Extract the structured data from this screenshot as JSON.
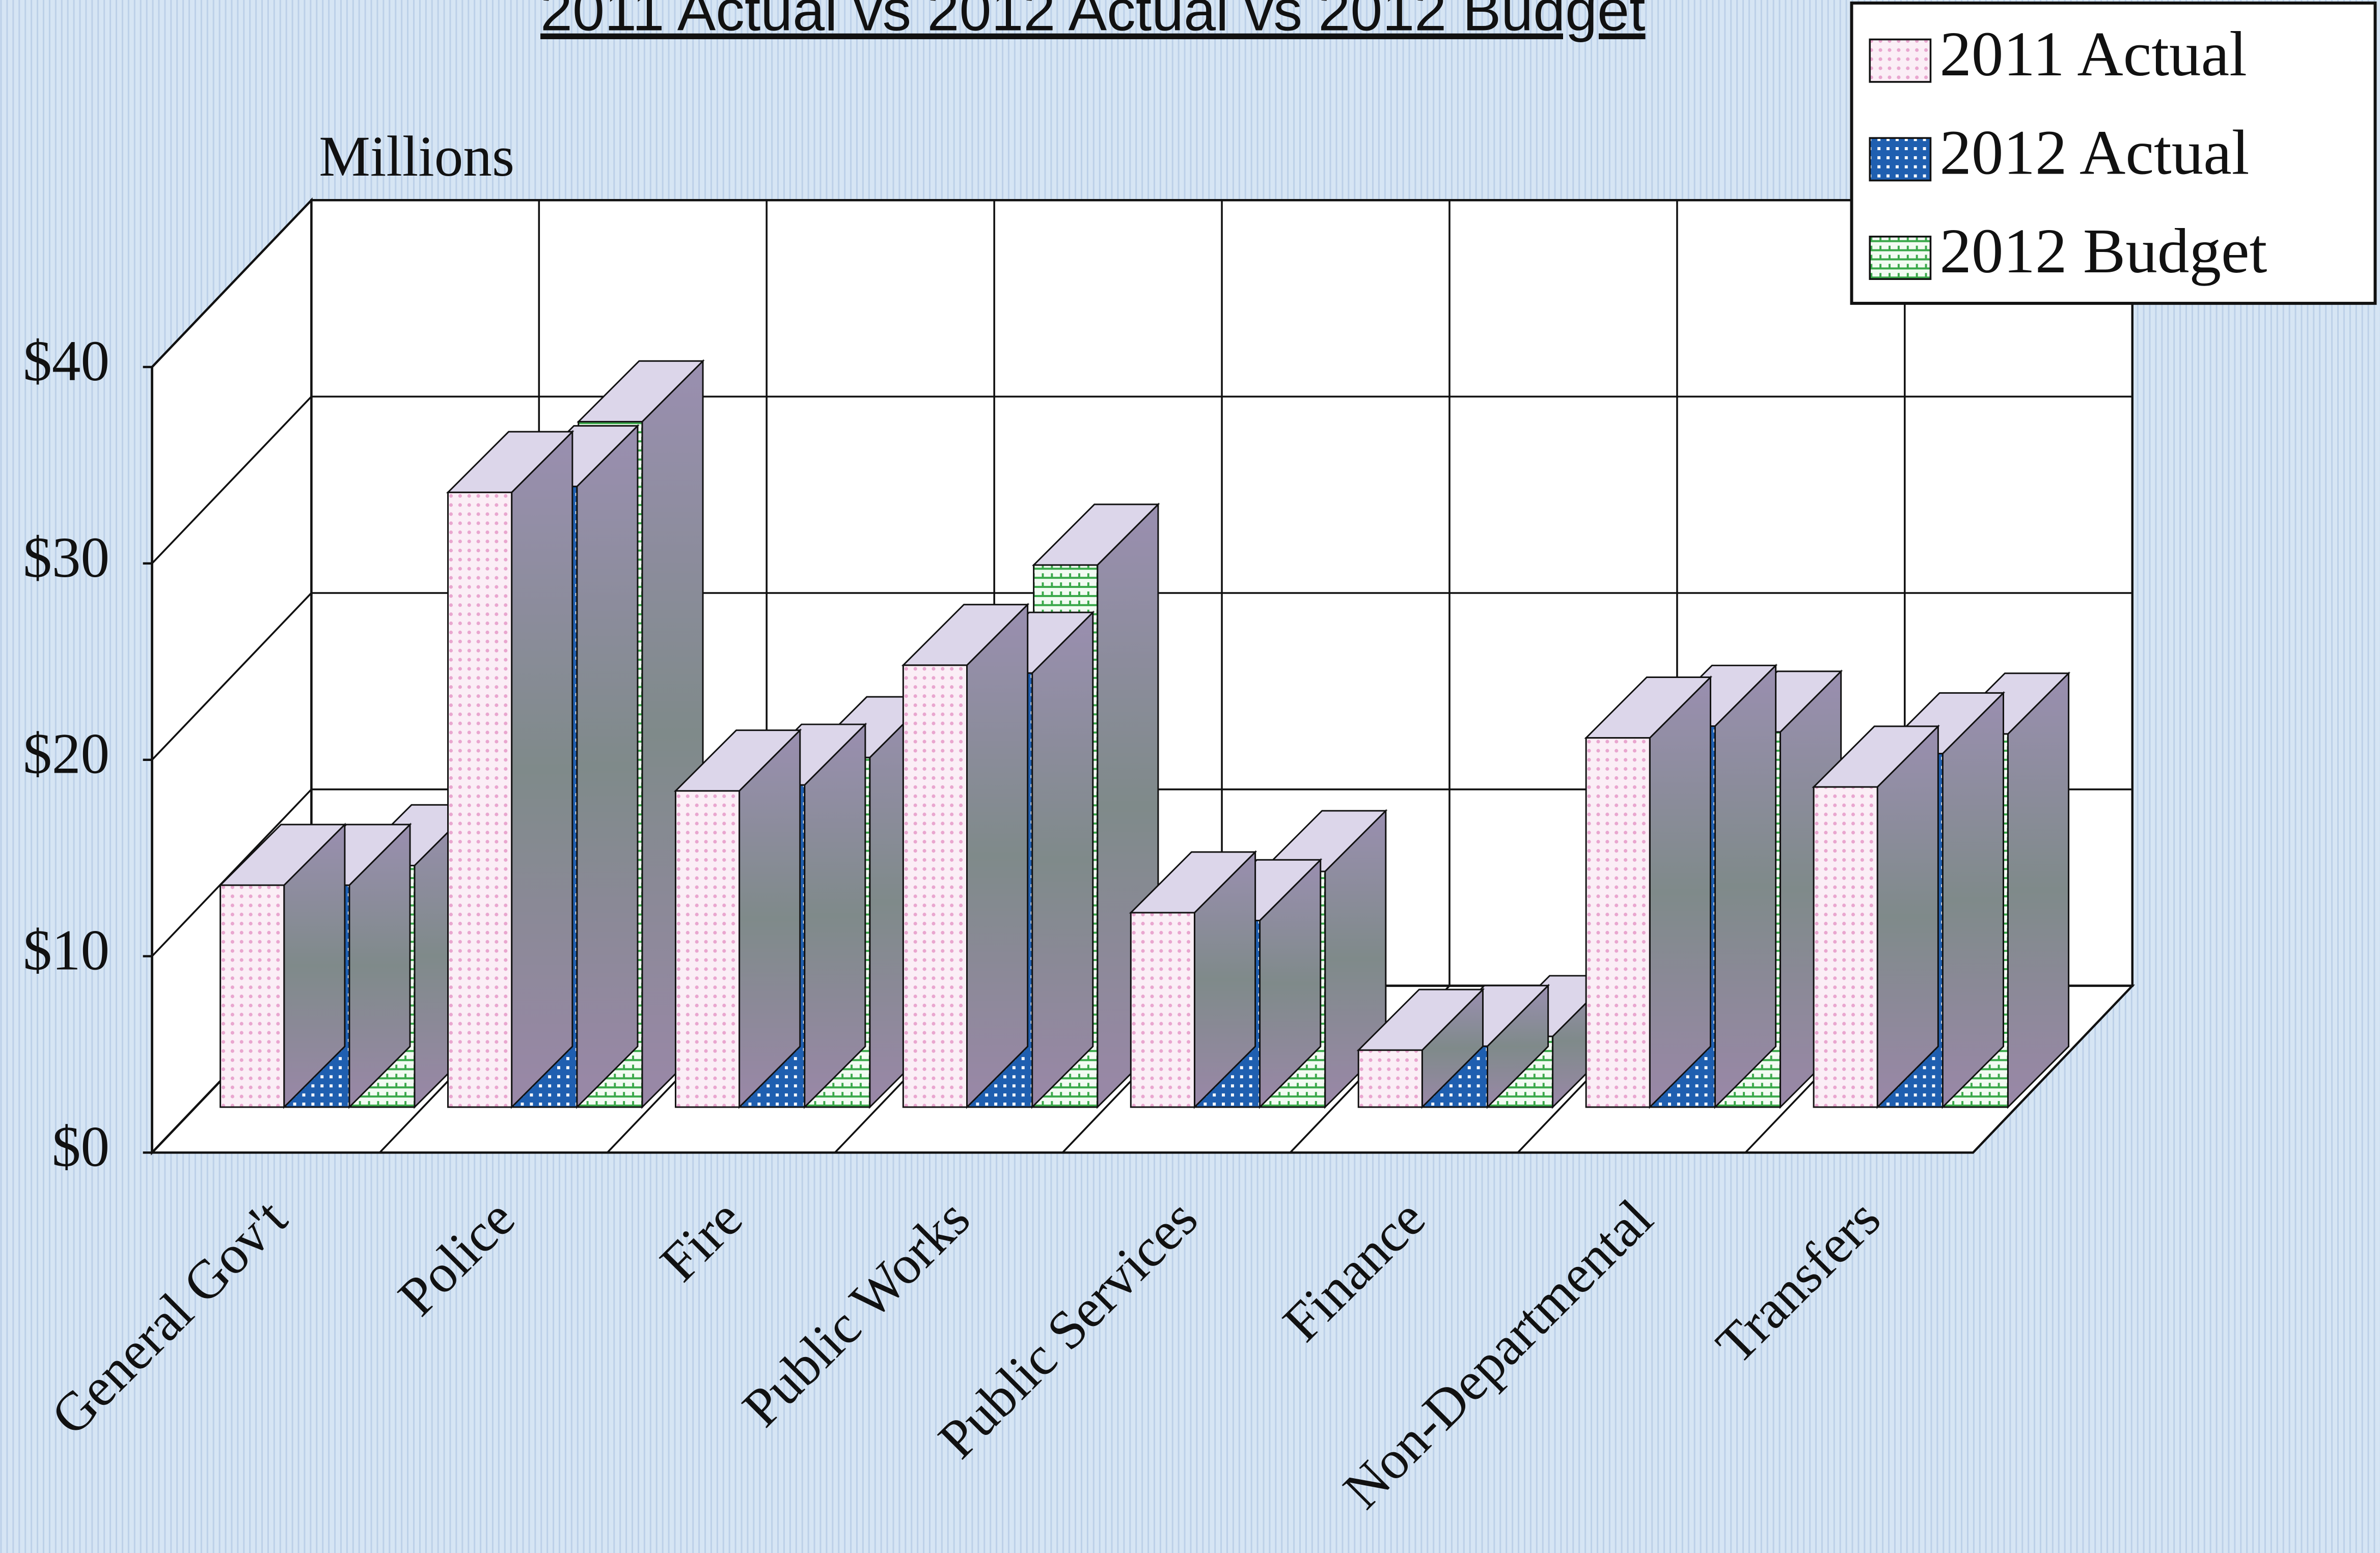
{
  "chart_data": {
    "type": "bar3d",
    "title": "2011 Actual vs 2012 Actual vs 2012 Budget",
    "y_label": "Millions",
    "categories": [
      "General Gov't",
      "Police",
      "Fire",
      "Public Works",
      "Public Services",
      "Finance",
      "Non-Departmental",
      "Transfers"
    ],
    "series": [
      {
        "name": "2011 Actual",
        "color": "#e9a6cf",
        "values": [
          11.3,
          31.3,
          16.1,
          22.5,
          9.9,
          2.9,
          18.8,
          16.3
        ]
      },
      {
        "name": "2012 Actual",
        "color": "#1f5fb0",
        "values": [
          11.3,
          31.6,
          16.4,
          22.1,
          9.5,
          3.1,
          19.4,
          18.0
        ]
      },
      {
        "name": "2012 Budget",
        "color": "#3aa84a",
        "values": [
          12.3,
          34.9,
          17.8,
          27.6,
          12.0,
          3.6,
          19.1,
          19.0
        ]
      }
    ],
    "ylim": [
      0,
      40
    ],
    "yticks": [
      {
        "value": 0,
        "label": "$0"
      },
      {
        "value": 10,
        "label": "$10"
      },
      {
        "value": 20,
        "label": "$20"
      },
      {
        "value": 30,
        "label": "$30"
      },
      {
        "value": 40,
        "label": "$40"
      }
    ],
    "grid": true,
    "legend": "top-right"
  }
}
